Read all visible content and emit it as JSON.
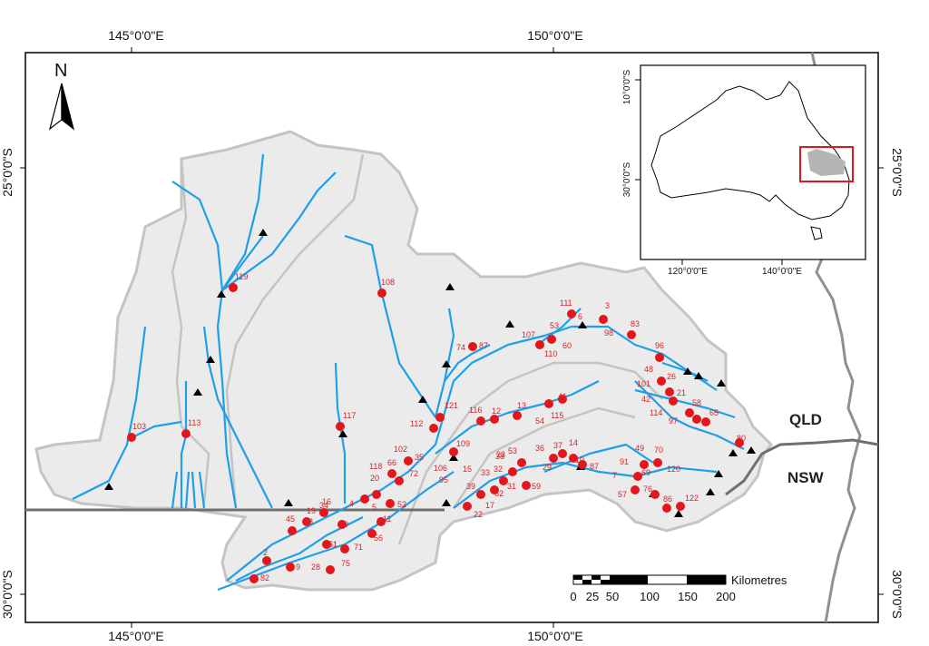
{
  "map": {
    "top_coords": [
      "145°0'0\"E",
      "150°0'0\"E"
    ],
    "bottom_coords": [
      "145°0'0\"E",
      "150°0'0\"E"
    ],
    "left_coords": [
      "25°0'0\"S",
      "30°0'0\"S"
    ],
    "right_coords": [
      "25°0'0\"S",
      "30°0'0\"S"
    ],
    "north_label": "N",
    "state_labels": [
      "QLD",
      "NSW"
    ],
    "scale": {
      "title": "Kilometres",
      "ticks": [
        "0",
        "25",
        "50",
        "100",
        "150",
        "200"
      ]
    },
    "inset": {
      "top_coords": [
        "10°0'0\"S",
        "30°0'0\"S"
      ],
      "bottom_coords": [
        "120°0'0\"E",
        "140°0'0\"E"
      ]
    },
    "colors": {
      "river": "#1f9fe8",
      "site": "#e4161b",
      "gauge": "#000000",
      "catchment": "#ebebeb",
      "catchment_border": "#c4c4c4",
      "inset_frame": "#e4161b"
    },
    "site_labels": [
      "119",
      "108",
      "111",
      "3",
      "53",
      "6",
      "83",
      "98",
      "107",
      "60",
      "110",
      "74",
      "87",
      "96",
      "48",
      "26",
      "101",
      "21",
      "42",
      "58",
      "114",
      "97",
      "65",
      "80",
      "117",
      "121",
      "112",
      "116",
      "12",
      "13",
      "41",
      "54",
      "115",
      "103",
      "113",
      "109",
      "14",
      "37",
      "36",
      "23",
      "102",
      "53",
      "118",
      "66",
      "72",
      "35",
      "5",
      "4",
      "20",
      "52",
      "16",
      "18",
      "40",
      "45",
      "19",
      "51",
      "71",
      "56",
      "34",
      "11",
      "17",
      "22",
      "15",
      "106",
      "95",
      "39",
      "33",
      "32",
      "31",
      "62",
      "38",
      "29",
      "10",
      "87",
      "59",
      "49",
      "70",
      "91",
      "69",
      "120",
      "7",
      "57",
      "76",
      "86",
      "122",
      "61",
      "2",
      "28",
      "75",
      "9",
      "82"
    ]
  }
}
